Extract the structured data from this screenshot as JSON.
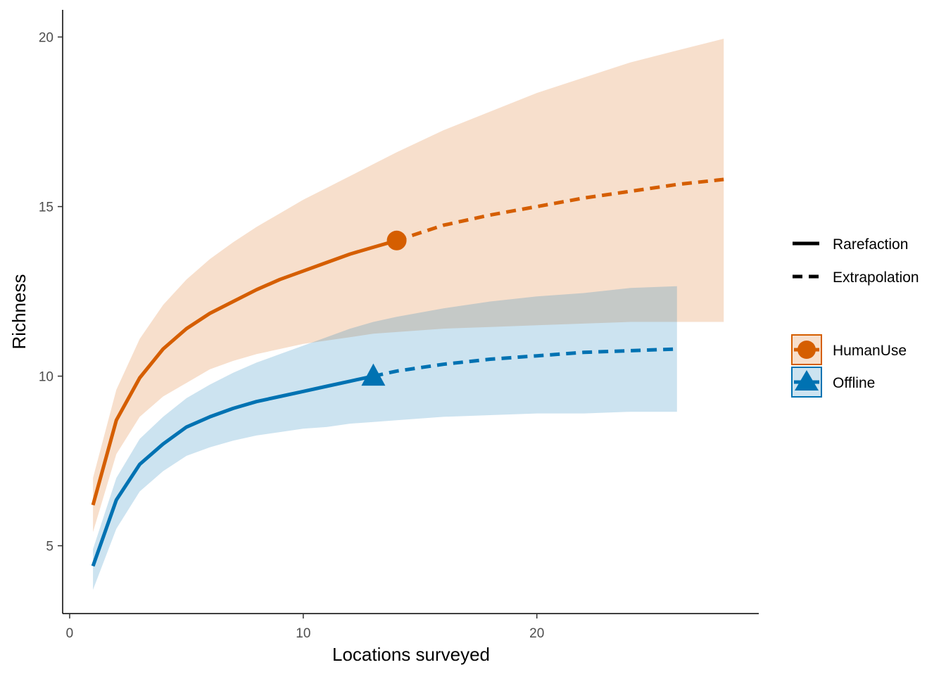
{
  "chart_data": {
    "type": "line",
    "title": "",
    "xlabel": "Locations surveyed",
    "ylabel": "Richness",
    "xlim": [
      -0.3,
      29.5
    ],
    "ylim": [
      3.0,
      20.8
    ],
    "xticks": [
      0,
      10,
      20
    ],
    "yticks": [
      5,
      10,
      15,
      20
    ],
    "grid": false,
    "legend_placement": "right",
    "linetype_legend": [
      "Rarefaction",
      "Extrapolation"
    ],
    "series": [
      {
        "name": "HumanUse",
        "color": "#D55E00",
        "fill_color": "#D55E00",
        "fill_opacity": 0.2,
        "marker": "circle",
        "observed": {
          "x": 14,
          "y": 14.0
        },
        "rarefaction": {
          "x": [
            1,
            2,
            3,
            4,
            5,
            6,
            7,
            8,
            9,
            10,
            11,
            12,
            13,
            14
          ],
          "y": [
            6.2,
            8.7,
            9.95,
            10.8,
            11.4,
            11.85,
            12.2,
            12.55,
            12.85,
            13.1,
            13.35,
            13.6,
            13.8,
            14.0
          ],
          "lower": [
            5.4,
            7.7,
            8.8,
            9.4,
            9.8,
            10.2,
            10.45,
            10.65,
            10.8,
            10.95,
            11.05,
            11.15,
            11.25,
            11.3
          ],
          "upper": [
            7.0,
            9.6,
            11.1,
            12.1,
            12.85,
            13.45,
            13.95,
            14.4,
            14.8,
            15.2,
            15.55,
            15.9,
            16.25,
            16.6
          ]
        },
        "extrapolation": {
          "x": [
            14,
            16,
            18,
            20,
            22,
            24,
            26,
            28
          ],
          "y": [
            14.0,
            14.45,
            14.75,
            15.0,
            15.25,
            15.45,
            15.65,
            15.8
          ],
          "lower": [
            11.3,
            11.4,
            11.45,
            11.5,
            11.55,
            11.6,
            11.6,
            11.6
          ],
          "upper": [
            16.6,
            17.25,
            17.8,
            18.35,
            18.8,
            19.25,
            19.6,
            19.95
          ]
        }
      },
      {
        "name": "Offline",
        "color": "#0072B2",
        "fill_color": "#0072B2",
        "fill_opacity": 0.2,
        "marker": "triangle",
        "observed": {
          "x": 13,
          "y": 10.0
        },
        "rarefaction": {
          "x": [
            1,
            2,
            3,
            4,
            5,
            6,
            7,
            8,
            9,
            10,
            11,
            12,
            13
          ],
          "y": [
            4.4,
            6.35,
            7.4,
            8.0,
            8.5,
            8.8,
            9.05,
            9.25,
            9.4,
            9.55,
            9.7,
            9.85,
            10.0
          ],
          "lower": [
            3.7,
            5.5,
            6.6,
            7.2,
            7.65,
            7.9,
            8.1,
            8.25,
            8.35,
            8.45,
            8.5,
            8.6,
            8.65
          ],
          "upper": [
            4.9,
            7.0,
            8.15,
            8.8,
            9.35,
            9.75,
            10.1,
            10.4,
            10.65,
            10.9,
            11.15,
            11.4,
            11.6
          ]
        },
        "extrapolation": {
          "x": [
            13,
            14,
            16,
            18,
            20,
            22,
            24,
            26
          ],
          "y": [
            10.0,
            10.15,
            10.35,
            10.5,
            10.6,
            10.7,
            10.75,
            10.8
          ],
          "lower": [
            8.65,
            8.7,
            8.8,
            8.85,
            8.9,
            8.9,
            8.95,
            8.95
          ],
          "upper": [
            11.6,
            11.75,
            12.0,
            12.2,
            12.35,
            12.45,
            12.6,
            12.65
          ]
        }
      }
    ]
  }
}
